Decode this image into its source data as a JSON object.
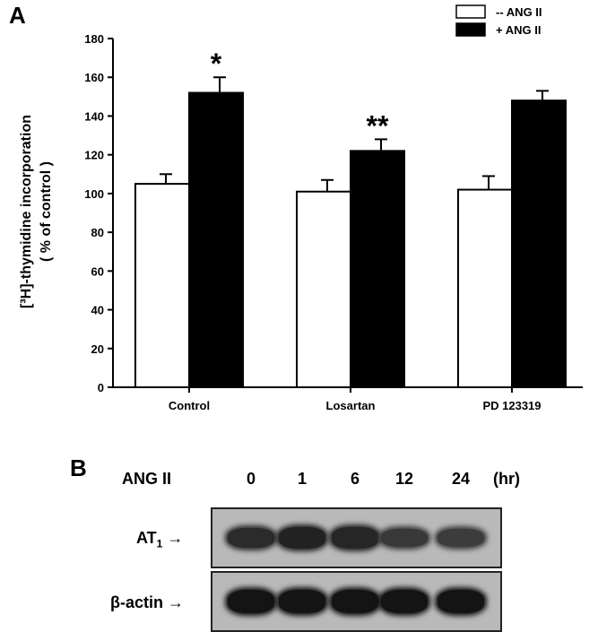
{
  "panel_a": {
    "label": "A",
    "ylabel_line1": "[³H]-thymidine incorporation",
    "ylabel_line2": "( % of control )",
    "legend": [
      {
        "label": "-- ANG II",
        "color": "#ffffff"
      },
      {
        "label": "+ ANG II",
        "color": "#000000"
      }
    ]
  },
  "chart_data": {
    "type": "bar",
    "title": "",
    "xlabel": "",
    "ylabel": "[³H]-thymidine incorporation ( % of control )",
    "ylim": [
      0,
      180
    ],
    "yticks": [
      0,
      20,
      40,
      60,
      80,
      100,
      120,
      140,
      160,
      180
    ],
    "categories": [
      "Control",
      "Losartan",
      "PD 123319"
    ],
    "series": [
      {
        "name": "-- ANG II",
        "values": [
          105,
          101,
          102
        ],
        "errors": [
          5,
          6,
          7
        ],
        "color": "#ffffff"
      },
      {
        "name": "+ ANG II",
        "values": [
          152,
          122,
          148
        ],
        "errors": [
          8,
          6,
          5
        ],
        "color": "#000000"
      }
    ],
    "annotations": [
      {
        "category": "Control",
        "series": "+ ANG II",
        "text": "*"
      },
      {
        "category": "Losartan",
        "series": "+ ANG II",
        "text": "**"
      }
    ],
    "legend_position": "top-right",
    "grid": false
  },
  "panel_b": {
    "label": "B",
    "treatment_label": "ANG II",
    "unit_label": "(hr)",
    "lanes": [
      "0",
      "1",
      "6",
      "12",
      "24"
    ],
    "rows": [
      {
        "label": "AT",
        "subscript": "1",
        "arrow": "→",
        "intensity": [
          0.75,
          0.85,
          0.8,
          0.6,
          0.55
        ]
      },
      {
        "label": "β-actin",
        "subscript": "",
        "arrow": "→",
        "intensity": [
          1.0,
          1.0,
          1.0,
          1.0,
          1.0
        ]
      }
    ]
  }
}
